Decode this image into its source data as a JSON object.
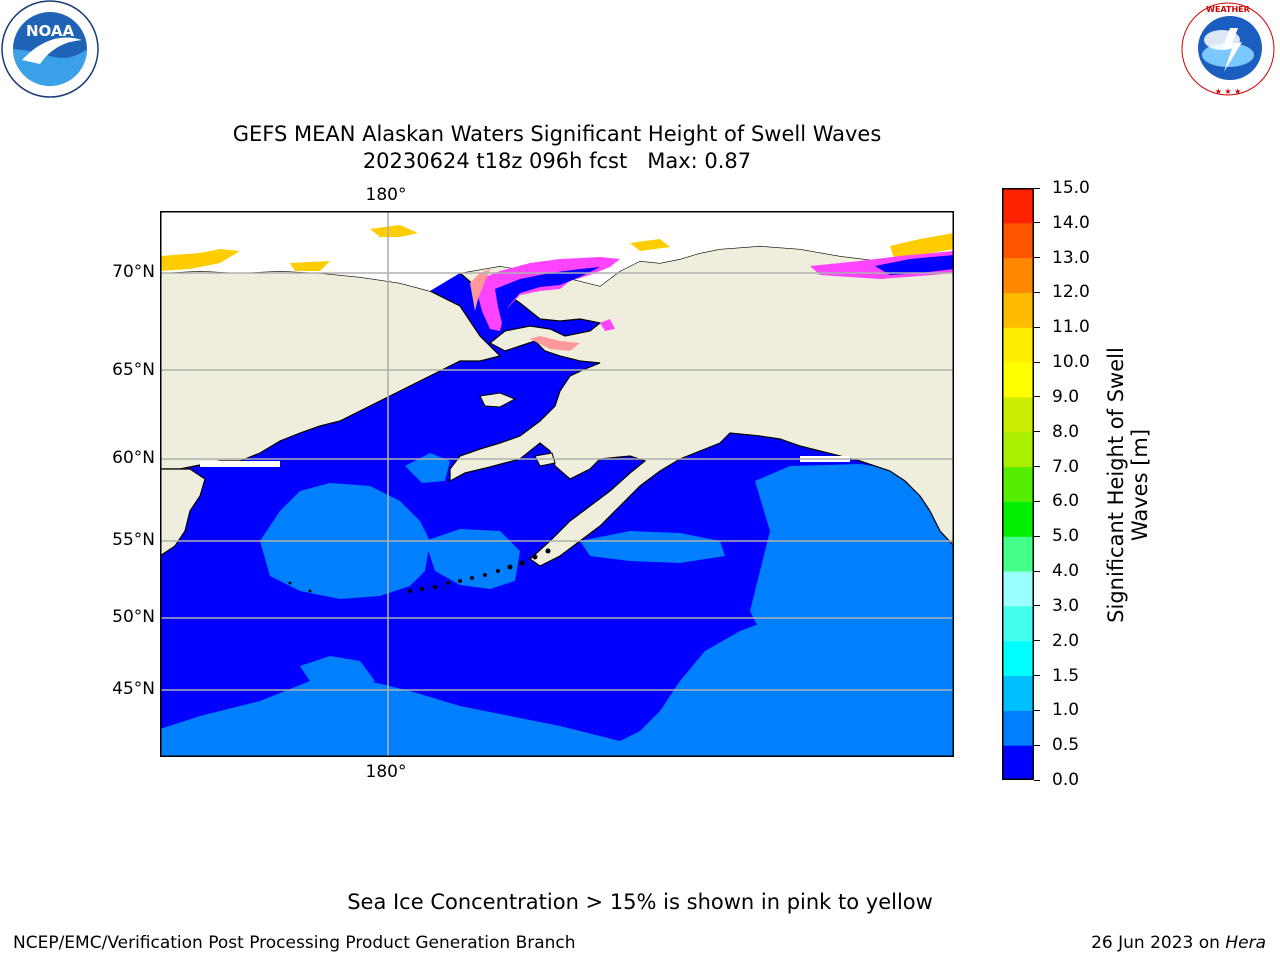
{
  "title": {
    "line1": "GEFS MEAN Alaskan Waters Significant Height of Swell Waves",
    "line2": "20230624 t18z 096h fcst   Max: 0.87"
  },
  "logos": {
    "noara_text": "NOAA",
    "noaa_ring": "NATIONAL OCEANIC AND ATMOSPHERIC ADMINISTRATION · U.S. DEPARTMENT OF COMMERCE",
    "nws_ring": "NATIONAL WEATHER SERVICE"
  },
  "map": {
    "lat_labels": [
      "70°N",
      "65°N",
      "60°N",
      "55°N",
      "50°N",
      "45°N"
    ],
    "lon_label_top": "180°",
    "lon_label_bottom": "180°",
    "colors": {
      "land": "#efeedd",
      "swell_0_05": "#0000ff",
      "swell_05_10": "#0080ff",
      "ice_low": "#ff44ff",
      "ice_mid": "#ff9999",
      "ice_high": "#ffcc00",
      "grid": "#b0b0b0"
    }
  },
  "colorbar": {
    "ticks": [
      "0.0",
      "0.5",
      "1.0",
      "1.5",
      "2.0",
      "3.0",
      "4.0",
      "5.0",
      "6.0",
      "7.0",
      "8.0",
      "9.0",
      "10.0",
      "11.0",
      "12.0",
      "13.0",
      "14.0",
      "15.0"
    ],
    "colors": [
      "#0000ff",
      "#0080ff",
      "#00bfff",
      "#00ffff",
      "#44ffee",
      "#99ffff",
      "#44ff88",
      "#00ee00",
      "#55ee00",
      "#aaee00",
      "#ccee00",
      "#ffff00",
      "#ffee00",
      "#ffbb00",
      "#ff8800",
      "#ff5500",
      "#ff2200"
    ],
    "label": "Significant Height of Swell Waves [m]"
  },
  "note": "Sea Ice Concentration > 15% is shown in pink to yellow",
  "credit_left": "NCEP/EMC/Verification Post Processing Product Generation Branch",
  "credit_right_date": "26 Jun 2023 on ",
  "credit_right_host": "Hera"
}
